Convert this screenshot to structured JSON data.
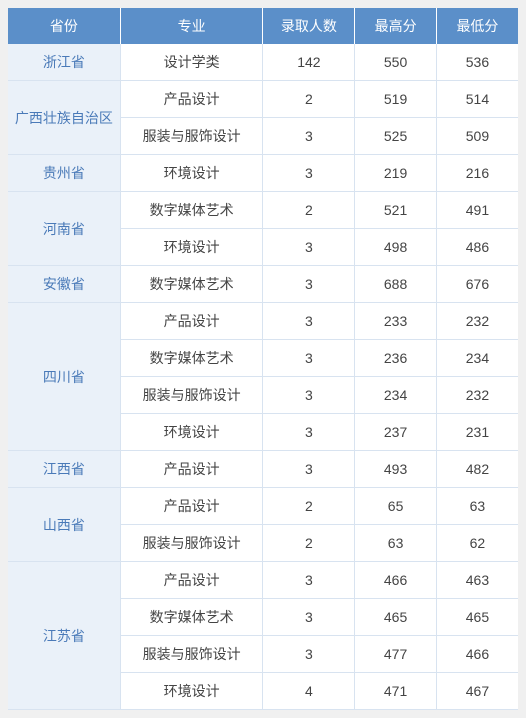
{
  "headers": [
    "省份",
    "专业",
    "录取人数",
    "最高分",
    "最低分"
  ],
  "colors": {
    "header_bg": "#5b8fc9",
    "header_text": "#ffffff",
    "province_bg": "#eaf1f9",
    "province_text": "#4a7ab8",
    "cell_text": "#444444",
    "border": "#d8e3f0"
  },
  "provinces": [
    {
      "name": "浙江省",
      "rows": [
        {
          "major": "设计学类",
          "count": 142,
          "high": 550,
          "low": 536
        }
      ]
    },
    {
      "name": "广西壮族自治区",
      "rows": [
        {
          "major": "产品设计",
          "count": 2,
          "high": 519,
          "low": 514
        },
        {
          "major": "服装与服饰设计",
          "count": 3,
          "high": 525,
          "low": 509
        }
      ]
    },
    {
      "name": "贵州省",
      "rows": [
        {
          "major": "环境设计",
          "count": 3,
          "high": 219,
          "low": 216
        }
      ]
    },
    {
      "name": "河南省",
      "rows": [
        {
          "major": "数字媒体艺术",
          "count": 2,
          "high": 521,
          "low": 491
        },
        {
          "major": "环境设计",
          "count": 3,
          "high": 498,
          "low": 486
        }
      ]
    },
    {
      "name": "安徽省",
      "rows": [
        {
          "major": "数字媒体艺术",
          "count": 3,
          "high": 688,
          "low": 676
        }
      ]
    },
    {
      "name": "四川省",
      "rows": [
        {
          "major": "产品设计",
          "count": 3,
          "high": 233,
          "low": 232
        },
        {
          "major": "数字媒体艺术",
          "count": 3,
          "high": 236,
          "low": 234
        },
        {
          "major": "服装与服饰设计",
          "count": 3,
          "high": 234,
          "low": 232
        },
        {
          "major": "环境设计",
          "count": 3,
          "high": 237,
          "low": 231
        }
      ]
    },
    {
      "name": "江西省",
      "rows": [
        {
          "major": "产品设计",
          "count": 3,
          "high": 493,
          "low": 482
        }
      ]
    },
    {
      "name": "山西省",
      "rows": [
        {
          "major": "产品设计",
          "count": 2,
          "high": 65,
          "low": 63
        },
        {
          "major": "服装与服饰设计",
          "count": 2,
          "high": 63,
          "low": 62
        }
      ]
    },
    {
      "name": "江苏省",
      "rows": [
        {
          "major": "产品设计",
          "count": 3,
          "high": 466,
          "low": 463
        },
        {
          "major": "数字媒体艺术",
          "count": 3,
          "high": 465,
          "low": 465
        },
        {
          "major": "服装与服饰设计",
          "count": 3,
          "high": 477,
          "low": 466
        },
        {
          "major": "环境设计",
          "count": 4,
          "high": 471,
          "low": 467
        }
      ]
    }
  ]
}
